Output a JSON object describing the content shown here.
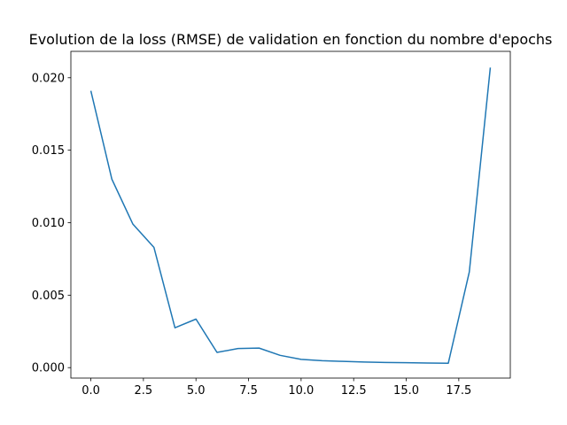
{
  "chart_data": {
    "type": "line",
    "title": "Evolution de la loss (RMSE) de validation en fonction du nombre d'epochs",
    "xlabel": "",
    "ylabel": "",
    "xlim": [
      -0.95,
      19.95
    ],
    "ylim": [
      -0.00072,
      0.02182
    ],
    "x_ticks": [
      0,
      2.5,
      5,
      7.5,
      10,
      12.5,
      15,
      17.5
    ],
    "x_tick_labels": [
      "0.0",
      "2.5",
      "5.0",
      "7.5",
      "10.0",
      "12.5",
      "15.0",
      "17.5"
    ],
    "y_ticks": [
      0,
      0.005,
      0.01,
      0.015,
      0.02
    ],
    "y_tick_labels": [
      "0.000",
      "0.005",
      "0.010",
      "0.015",
      "0.020"
    ],
    "grid": false,
    "series": [
      {
        "color": "#1f77b4",
        "x": [
          0,
          1,
          2,
          3,
          4,
          5,
          6,
          7,
          8,
          9,
          10,
          11,
          12,
          13,
          14,
          15,
          16,
          17,
          18,
          19
        ],
        "values": [
          0.0191,
          0.013,
          0.0099,
          0.0083,
          0.00275,
          0.00335,
          0.00105,
          0.00132,
          0.00135,
          0.00085,
          0.00057,
          0.00048,
          0.00043,
          0.00039,
          0.00036,
          0.00034,
          0.00032,
          0.0003,
          0.0066,
          0.0207
        ]
      }
    ]
  }
}
